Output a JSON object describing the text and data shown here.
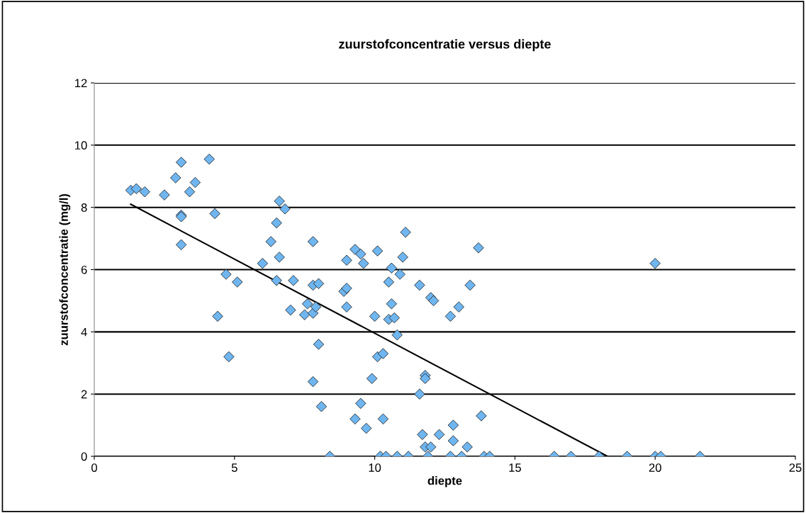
{
  "chart_data": {
    "type": "scatter",
    "title": "zuurstofconcentratie versus diepte",
    "xlabel": "diepte",
    "ylabel": "zuurstofconcentratie (mg/l)",
    "xlim": [
      0,
      25
    ],
    "xticks": [
      0,
      5,
      10,
      15,
      20,
      25
    ],
    "ylim": [
      0,
      12
    ],
    "yticks": [
      0,
      2,
      4,
      6,
      8,
      10,
      12
    ],
    "grid": "y",
    "legend": false,
    "marker": "diamond",
    "series": [
      {
        "color": "#6fb6f0",
        "x": [
          1.3,
          1.5,
          1.8,
          2.5,
          2.9,
          3.1,
          3.1,
          3.1,
          3.1,
          3.4,
          3.6,
          4.1,
          4.3,
          4.4,
          4.7,
          4.8,
          5.1,
          6.0,
          6.3,
          6.5,
          6.5,
          6.6,
          6.6,
          6.8,
          7.0,
          7.1,
          7.5,
          7.6,
          7.8,
          7.8,
          7.8,
          7.8,
          7.9,
          8.0,
          8.0,
          8.1,
          8.4,
          8.9,
          9.0,
          9.0,
          9.0,
          9.3,
          9.3,
          9.5,
          9.5,
          9.6,
          9.7,
          9.9,
          10.0,
          10.1,
          10.1,
          10.2,
          10.3,
          10.3,
          10.4,
          10.5,
          10.5,
          10.6,
          10.6,
          10.7,
          10.8,
          10.8,
          10.9,
          11.0,
          11.1,
          11.2,
          11.6,
          11.6,
          11.7,
          11.8,
          11.8,
          11.8,
          11.9,
          12.0,
          12.0,
          12.1,
          12.3,
          12.7,
          12.7,
          12.8,
          12.8,
          13.0,
          13.1,
          13.3,
          13.4,
          13.7,
          13.8,
          13.9,
          14.1,
          16.4,
          17.0,
          18.0,
          19.0,
          20.0,
          20.0,
          20.2,
          21.6
        ],
        "values": [
          8.55,
          8.6,
          8.5,
          8.4,
          8.95,
          9.45,
          7.75,
          7.7,
          6.8,
          8.5,
          8.8,
          9.55,
          7.8,
          4.5,
          5.85,
          3.2,
          5.6,
          6.2,
          6.9,
          5.65,
          7.5,
          8.2,
          6.4,
          7.95,
          4.7,
          5.65,
          4.55,
          4.9,
          6.9,
          5.5,
          2.4,
          4.6,
          4.8,
          5.55,
          3.6,
          1.6,
          0,
          5.3,
          5.4,
          6.3,
          4.8,
          1.2,
          6.65,
          6.5,
          1.7,
          6.2,
          0.9,
          2.5,
          4.5,
          6.6,
          3.2,
          0,
          3.3,
          1.2,
          0,
          5.6,
          4.4,
          6.05,
          4.9,
          4.45,
          3.9,
          0,
          5.85,
          6.4,
          7.2,
          0,
          5.5,
          2.0,
          0.7,
          2.6,
          2.5,
          0.3,
          0,
          0.3,
          5.1,
          5.0,
          0.7,
          0,
          4.5,
          1.0,
          0.5,
          4.8,
          0,
          0.3,
          5.5,
          6.7,
          1.3,
          0,
          0,
          0,
          0,
          0,
          0,
          6.2,
          0,
          0,
          0
        ]
      },
      {
        "type": "line",
        "color": "#000000",
        "marker": "none",
        "line_style": "solid",
        "x": [
          1.3,
          18.3
        ],
        "values": [
          8.1,
          0
        ]
      }
    ]
  }
}
